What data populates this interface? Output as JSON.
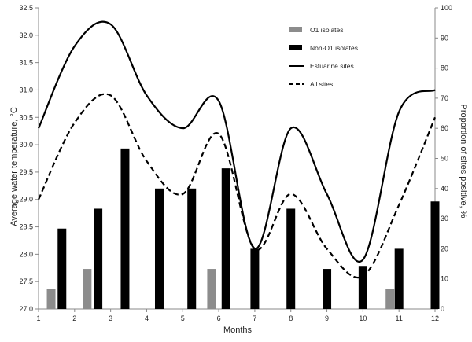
{
  "chart_data": {
    "type": "bar",
    "title": "",
    "xlabel": "Months",
    "ylabel_left": "Average water temperature, °C",
    "ylabel_right": "Proportion of sites positive, %",
    "x_ticks": [
      "1",
      "2",
      "3",
      "4",
      "5",
      "6",
      "7",
      "8",
      "9",
      "10",
      "11",
      "12"
    ],
    "y_left_ticks": [
      "27.0",
      "27.5",
      "28.0",
      "28.5",
      "29.0",
      "29.5",
      "30.0",
      "30.5",
      "31.0",
      "31.5",
      "32.0",
      "32.5"
    ],
    "y_right_ticks": [
      "0",
      "10",
      "20",
      "30",
      "40",
      "50",
      "60",
      "70",
      "80",
      "90",
      "100"
    ],
    "ylim_left": [
      27.0,
      32.5
    ],
    "ylim_right": [
      0,
      100
    ],
    "grid": false,
    "legend_position": "top-right",
    "bar_series": [
      {
        "name": "O1 isolates",
        "color": "#8c8c8c",
        "points": [
          {
            "x": 1.35,
            "value": 6.7
          },
          {
            "x": 2.35,
            "value": 13.3
          },
          {
            "x": 5.8,
            "value": 13.3
          },
          {
            "x": 10.75,
            "value": 6.7
          }
        ]
      },
      {
        "name": "Non-O1 isolates",
        "color": "#000000",
        "points": [
          {
            "x": 1.65,
            "value": 26.7
          },
          {
            "x": 2.65,
            "value": 33.3
          },
          {
            "x": 3.4,
            "value": 53.3
          },
          {
            "x": 4.35,
            "value": 40.0
          },
          {
            "x": 5.25,
            "value": 40.0
          },
          {
            "x": 6.2,
            "value": 46.7
          },
          {
            "x": 7.0,
            "value": 20.0
          },
          {
            "x": 8.0,
            "value": 33.3
          },
          {
            "x": 9.0,
            "value": 13.3
          },
          {
            "x": 10.0,
            "value": 14.3
          },
          {
            "x": 11.0,
            "value": 20.0
          },
          {
            "x": 12.0,
            "value": 35.7
          }
        ]
      }
    ],
    "line_series": [
      {
        "name": "Estuarine sites",
        "axis": "left",
        "style": "solid",
        "color": "#000000",
        "x": [
          1,
          2,
          3,
          4,
          5,
          6,
          7,
          8,
          9,
          10,
          11,
          12
        ],
        "y": [
          30.3,
          31.8,
          32.2,
          30.9,
          30.3,
          30.8,
          28.1,
          30.3,
          29.1,
          27.9,
          30.6,
          31.0
        ]
      },
      {
        "name": "All sites",
        "axis": "left",
        "style": "dashed",
        "color": "#000000",
        "x": [
          1,
          2,
          3,
          4,
          5,
          6,
          7,
          8,
          9,
          10,
          11,
          12
        ],
        "y": [
          29.0,
          30.4,
          30.9,
          29.7,
          29.1,
          30.2,
          28.1,
          29.1,
          28.1,
          27.6,
          28.9,
          30.5
        ]
      }
    ]
  }
}
